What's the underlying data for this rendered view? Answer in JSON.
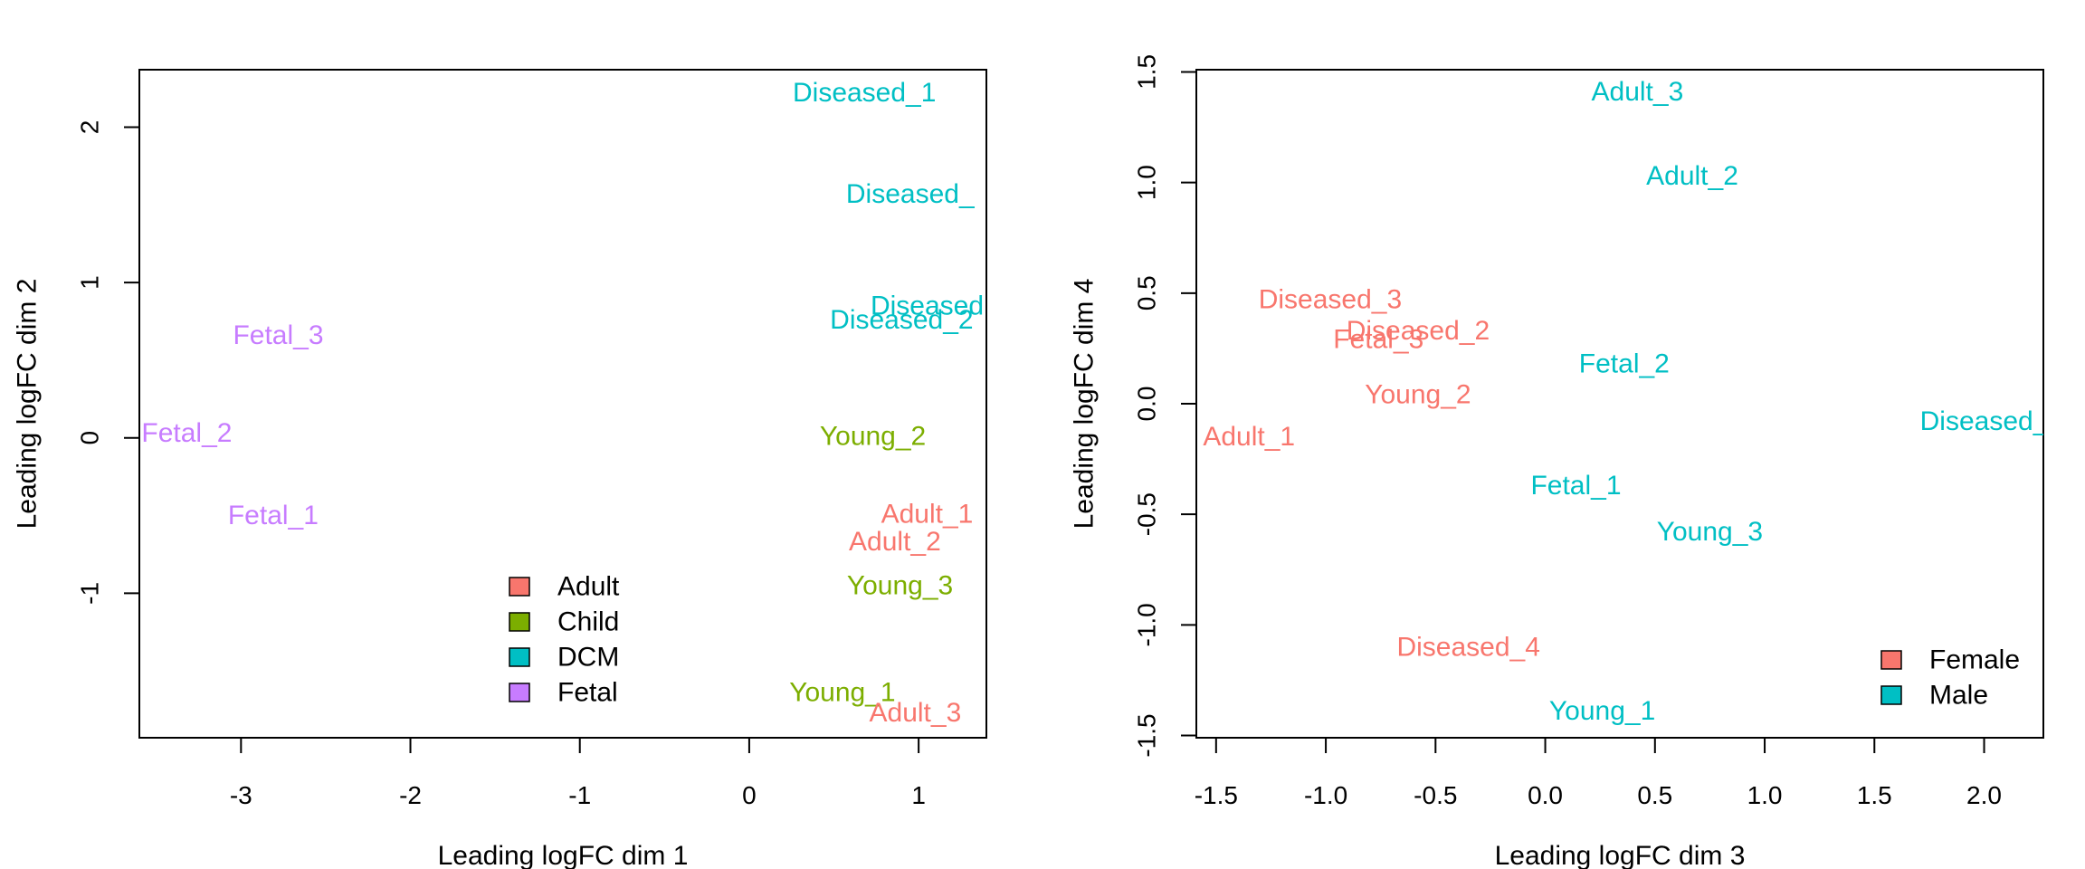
{
  "chart_data": [
    {
      "type": "scatter",
      "title": "",
      "xlabel": "Leading logFC dim 1",
      "ylabel": "Leading logFC dim 2",
      "xlim": [
        -3.6,
        1.4
      ],
      "ylim": [
        -1.93,
        2.37
      ],
      "xticks": [
        -3,
        -2,
        -1,
        0,
        1
      ],
      "xtick_labels": [
        "-3",
        "-2",
        "-1",
        "0",
        "1"
      ],
      "yticks": [
        -1,
        0,
        1,
        2
      ],
      "ytick_labels": [
        "-1",
        "0",
        "1",
        "2"
      ],
      "legend": {
        "placement": "bottom-center",
        "entries": [
          {
            "label": "Adult",
            "color": "#F8766D"
          },
          {
            "label": "Child",
            "color": "#7CAE00"
          },
          {
            "label": "DCM",
            "color": "#00BFC4"
          },
          {
            "label": "Fetal",
            "color": "#C77CFF"
          }
        ]
      },
      "points": [
        {
          "label": "Diseased_1",
          "x": 0.68,
          "y": 2.22,
          "color": "#00BFC4"
        },
        {
          "label": "Diseased_",
          "x": 0.95,
          "y": 1.57,
          "color": "#00BFC4"
        },
        {
          "label": "Diseased",
          "x": 1.05,
          "y": 0.85,
          "color": "#00BFC4"
        },
        {
          "label": "Diseased_2",
          "x": 0.9,
          "y": 0.76,
          "color": "#00BFC4"
        },
        {
          "label": "Fetal_3",
          "x": -2.78,
          "y": 0.66,
          "color": "#C77CFF"
        },
        {
          "label": "Fetal_2",
          "x": -3.32,
          "y": 0.03,
          "color": "#C77CFF"
        },
        {
          "label": "Young_2",
          "x": 0.73,
          "y": 0.01,
          "color": "#7CAE00"
        },
        {
          "label": "Fetal_1",
          "x": -2.81,
          "y": -0.5,
          "color": "#C77CFF"
        },
        {
          "label": "Adult_1",
          "x": 1.05,
          "y": -0.49,
          "color": "#F8766D"
        },
        {
          "label": "Adult_2",
          "x": 0.86,
          "y": -0.67,
          "color": "#F8766D"
        },
        {
          "label": "Young_3",
          "x": 0.89,
          "y": -0.95,
          "color": "#7CAE00"
        },
        {
          "label": "Young_1",
          "x": 0.55,
          "y": -1.64,
          "color": "#7CAE00"
        },
        {
          "label": "Adult_3",
          "x": 0.98,
          "y": -1.77,
          "color": "#F8766D"
        }
      ]
    },
    {
      "type": "scatter",
      "title": "",
      "xlabel": "Leading logFC dim 3",
      "ylabel": "Leading logFC dim 4",
      "xlim": [
        -1.59,
        2.27
      ],
      "ylim": [
        -1.51,
        1.51
      ],
      "xticks": [
        -1.5,
        -1.0,
        -0.5,
        0.0,
        0.5,
        1.0,
        1.5,
        2.0
      ],
      "xtick_labels": [
        "-1.5",
        "-1.0",
        "-0.5",
        "0.0",
        "0.5",
        "1.0",
        "1.5",
        "2.0"
      ],
      "yticks": [
        -1.5,
        -1.0,
        -0.5,
        0.0,
        0.5,
        1.0,
        1.5
      ],
      "ytick_labels": [
        "-1.5",
        "-1.0",
        "-0.5",
        "0.0",
        "0.5",
        "1.0",
        "1.5"
      ],
      "legend": {
        "placement": "bottom-right",
        "entries": [
          {
            "label": "Female",
            "color": "#F8766D"
          },
          {
            "label": "Male",
            "color": "#00BFC4"
          }
        ]
      },
      "points": [
        {
          "label": "Adult_3",
          "x": 0.42,
          "y": 1.41,
          "color": "#00BFC4"
        },
        {
          "label": "Adult_2",
          "x": 0.67,
          "y": 1.03,
          "color": "#00BFC4"
        },
        {
          "label": "Diseased_3",
          "x": -0.98,
          "y": 0.47,
          "color": "#F8766D"
        },
        {
          "label": "Diseased_2",
          "x": -0.58,
          "y": 0.33,
          "color": "#F8766D"
        },
        {
          "label": "Fetal_3",
          "x": -0.76,
          "y": 0.29,
          "color": "#F8766D"
        },
        {
          "label": "Fetal_2",
          "x": 0.36,
          "y": 0.18,
          "color": "#00BFC4"
        },
        {
          "label": "Young_2",
          "x": -0.58,
          "y": 0.04,
          "color": "#F8766D"
        },
        {
          "label": "Adult_1",
          "x": -1.35,
          "y": -0.15,
          "color": "#F8766D"
        },
        {
          "label": "Diseased_",
          "x": 2.0,
          "y": -0.08,
          "color": "#00BFC4"
        },
        {
          "label": "Fetal_1",
          "x": 0.14,
          "y": -0.37,
          "color": "#00BFC4"
        },
        {
          "label": "Young_3",
          "x": 0.75,
          "y": -0.58,
          "color": "#00BFC4"
        },
        {
          "label": "Diseased_4",
          "x": -0.35,
          "y": -1.1,
          "color": "#F8766D"
        },
        {
          "label": "Young_1",
          "x": 0.26,
          "y": -1.39,
          "color": "#00BFC4"
        }
      ]
    }
  ]
}
